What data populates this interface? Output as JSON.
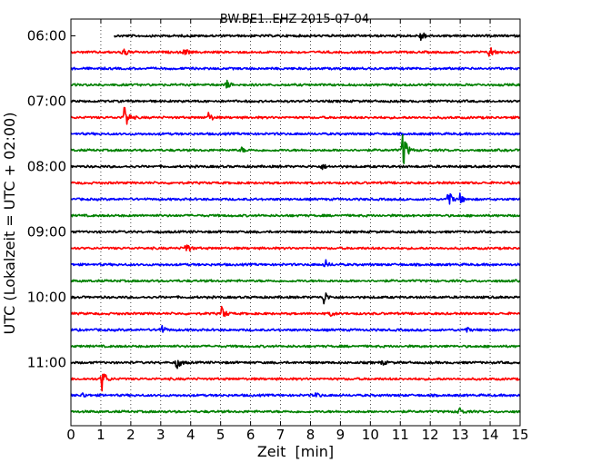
{
  "chart_data": {
    "type": "line",
    "title": "BW.BE1..EHZ 2015-07-04",
    "xlabel": "Zeit  [min]",
    "ylabel": "UTC (Lokalzeit = UTC + 02:00)",
    "xlim": [
      0,
      15
    ],
    "x_ticks": [
      0,
      1,
      2,
      3,
      4,
      5,
      6,
      7,
      8,
      9,
      10,
      11,
      12,
      13,
      14,
      15
    ],
    "y_tick_labels": [
      "06:00",
      "07:00",
      "08:00",
      "09:00",
      "10:00",
      "11:00"
    ],
    "grid": "vertical dotted at each minute",
    "color_cycle": [
      "#000000",
      "#ff0000",
      "#0000ff",
      "#008000"
    ],
    "rows": [
      {
        "start": "06:00",
        "x_start": 1.45,
        "events": [
          {
            "x": 11.7,
            "amp": 0.45
          }
        ]
      },
      {
        "start": "06:15",
        "events": [
          {
            "x": 1.75,
            "amp": 0.55
          },
          {
            "x": 3.8,
            "amp": 0.3
          },
          {
            "x": 14.0,
            "amp": 0.6
          }
        ]
      },
      {
        "start": "06:30",
        "events": []
      },
      {
        "start": "06:45",
        "events": [
          {
            "x": 5.2,
            "amp": 0.35
          }
        ]
      },
      {
        "start": "07:00",
        "events": []
      },
      {
        "start": "07:15",
        "events": [
          {
            "x": 1.8,
            "amp": 1.3
          },
          {
            "x": 4.6,
            "amp": 0.4
          }
        ]
      },
      {
        "start": "07:30",
        "events": []
      },
      {
        "start": "07:45",
        "events": [
          {
            "x": 11.1,
            "amp": 1.8
          },
          {
            "x": 5.7,
            "amp": 0.2
          }
        ]
      },
      {
        "start": "08:00",
        "events": [
          {
            "x": 8.4,
            "amp": 0.2
          }
        ]
      },
      {
        "start": "08:15",
        "events": []
      },
      {
        "start": "08:30",
        "events": [
          {
            "x": 12.6,
            "amp": 0.8
          },
          {
            "x": 13.0,
            "amp": 0.4
          }
        ]
      },
      {
        "start": "08:45",
        "events": []
      },
      {
        "start": "09:00",
        "events": []
      },
      {
        "start": "09:15",
        "events": [
          {
            "x": 3.85,
            "amp": 0.5
          }
        ]
      },
      {
        "start": "09:30",
        "events": [
          {
            "x": 8.5,
            "amp": 0.35
          }
        ]
      },
      {
        "start": "09:45",
        "events": []
      },
      {
        "start": "10:00",
        "events": [
          {
            "x": 8.45,
            "amp": 0.6
          }
        ]
      },
      {
        "start": "10:15",
        "events": [
          {
            "x": 5.05,
            "amp": 0.6
          },
          {
            "x": 8.7,
            "amp": 0.2
          }
        ]
      },
      {
        "start": "10:30",
        "events": [
          {
            "x": 3.0,
            "amp": 0.5
          },
          {
            "x": 13.2,
            "amp": 0.2
          }
        ]
      },
      {
        "start": "10:45",
        "events": []
      },
      {
        "start": "11:00",
        "events": [
          {
            "x": 3.55,
            "amp": 0.6
          },
          {
            "x": 10.4,
            "amp": 0.2
          }
        ]
      },
      {
        "start": "11:15",
        "events": [
          {
            "x": 1.05,
            "amp": 1.0
          }
        ]
      },
      {
        "start": "11:30",
        "events": [
          {
            "x": 0.4,
            "amp": 0.2
          },
          {
            "x": 8.2,
            "amp": 0.2
          }
        ]
      },
      {
        "start": "11:45",
        "events": [
          {
            "x": 12.95,
            "amp": 0.45
          }
        ]
      }
    ]
  }
}
